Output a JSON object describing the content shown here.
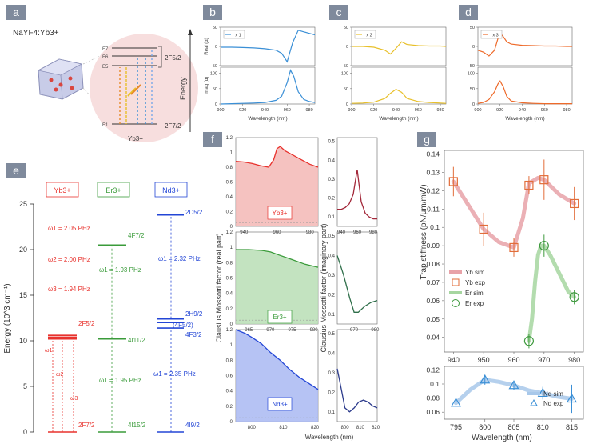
{
  "panels": {
    "a": "a",
    "b": "b",
    "c": "c",
    "d": "d",
    "e": "e",
    "f": "f",
    "g": "g"
  },
  "colors": {
    "panel_bg": "#7f8a9c",
    "yb": "#e8322d",
    "er": "#3a9b3a",
    "nd": "#2346d6",
    "yb_fill": "#f3b7b5",
    "er_fill": "#b9deb5",
    "nd_fill": "#a9b8f2",
    "b_line": "#3a8fd6",
    "c_line": "#e8c02a",
    "d_line": "#ee6a2a",
    "g_yb": "#e8a2a8",
    "g_yb_exp": "#e26d3a",
    "g_er": "#a6d6a0",
    "g_er_exp": "#3f9a3f",
    "g_nd": "#a8c8ea",
    "g_nd_exp": "#3a8fd6"
  },
  "panel_a": {
    "formula": "NaYF4:Yb3+",
    "levels_top": [
      "E7",
      "E6",
      "E5"
    ],
    "level_bottom": "E1",
    "label_top": "2F5/2",
    "label_bottom": "2F7/2",
    "ion": "Yb3+",
    "axis": "Energy"
  },
  "chart_data": [
    {
      "id": "b",
      "type": "line",
      "legend": "x 1",
      "top": {
        "ylabel": "Real (α)",
        "ylim": [
          -50,
          50
        ],
        "yticks": [
          "50",
          "0",
          "-50"
        ],
        "x": [
          900,
          910,
          920,
          930,
          940,
          950,
          955,
          960,
          965,
          970,
          975,
          980,
          985
        ],
        "y": [
          -2,
          -2,
          -3,
          -4,
          -6,
          -10,
          -18,
          -40,
          10,
          42,
          38,
          34,
          30
        ]
      },
      "bottom": {
        "ylabel": "Imag (α)",
        "ylim": [
          0,
          120
        ],
        "yticks": [
          "100",
          "50",
          "0"
        ],
        "x": [
          900,
          910,
          920,
          930,
          940,
          950,
          955,
          960,
          963,
          966,
          970,
          975,
          980,
          985
        ],
        "y": [
          0,
          1,
          2,
          3,
          5,
          12,
          25,
          70,
          110,
          90,
          40,
          15,
          8,
          5
        ]
      },
      "xticks": [
        "900",
        "920",
        "940",
        "960",
        "980"
      ],
      "xlabel": "Wavelength (nm)"
    },
    {
      "id": "c",
      "type": "line",
      "legend": "x 2",
      "top": {
        "ylim": [
          -50,
          50
        ],
        "yticks": [
          "50",
          "0",
          "-50"
        ],
        "x": [
          900,
          910,
          920,
          930,
          935,
          940,
          945,
          950,
          960,
          970,
          980,
          985
        ],
        "y": [
          0,
          0,
          -2,
          -10,
          -20,
          -5,
          12,
          5,
          2,
          1,
          1,
          0
        ]
      },
      "bottom": {
        "ylim": [
          0,
          120
        ],
        "yticks": [
          "100",
          "50",
          "0"
        ],
        "x": [
          900,
          910,
          920,
          930,
          935,
          940,
          945,
          950,
          960,
          970,
          980,
          985
        ],
        "y": [
          2,
          3,
          6,
          18,
          35,
          48,
          38,
          18,
          8,
          5,
          3,
          2
        ]
      },
      "xticks": [
        "900",
        "920",
        "940",
        "960",
        "980"
      ],
      "xlabel": "Wavelength (nm)"
    },
    {
      "id": "d",
      "type": "line",
      "legend": "x 3",
      "top": {
        "ylim": [
          -50,
          50
        ],
        "yticks": [
          "50",
          "0",
          "-50"
        ],
        "x": [
          900,
          905,
          910,
          915,
          918,
          920,
          923,
          926,
          930,
          940,
          950,
          960,
          970,
          980,
          985
        ],
        "y": [
          -10,
          -15,
          -25,
          -10,
          20,
          35,
          25,
          12,
          6,
          3,
          2,
          1,
          1,
          0,
          0
        ]
      },
      "bottom": {
        "ylim": [
          0,
          120
        ],
        "yticks": [
          "100",
          "50",
          "0"
        ],
        "x": [
          900,
          905,
          910,
          915,
          918,
          920,
          923,
          926,
          930,
          940,
          950,
          960,
          970,
          980,
          985
        ],
        "y": [
          2,
          5,
          15,
          40,
          65,
          75,
          55,
          25,
          10,
          4,
          2,
          1,
          1,
          1,
          1
        ]
      },
      "xticks": [
        "900",
        "920",
        "940",
        "960",
        "980"
      ],
      "xlabel": "Wavelength (nm)"
    },
    {
      "id": "e",
      "type": "diagram",
      "ylabel": "Energy (10^3 cm⁻¹)",
      "ylim": [
        0,
        25
      ],
      "yticks": [
        "0",
        "5",
        "10",
        "15",
        "20",
        "25"
      ],
      "ions": [
        "Yb3+",
        "Er3+",
        "Nd3+"
      ],
      "yb": {
        "freqs": [
          "ω1 = 2.05 PHz",
          "ω2 = 2.00 PHz",
          "ω3 = 1.94 PHz"
        ],
        "upper": "2F5/2",
        "lower": "2F7/2",
        "arrow_labels": [
          "ω1",
          "ω2",
          "ω3"
        ]
      },
      "er": {
        "upper_top": "4F7/2",
        "mid": "4I11/2",
        "lower": "4I15/2",
        "freq1": "ω1 = 1.93 PHz",
        "freq2": "ω1 = 1.95 PHz"
      },
      "nd": {
        "top": "2D5/2",
        "mid_a": "2H9/2",
        "mid_b": "(4F5/2)",
        "mid_c": "4F3/2",
        "lower": "4I9/2",
        "freq1": "ω1 = 2.32 PHz",
        "freq2": "ω1 = 2.35 PHz"
      }
    },
    {
      "id": "f",
      "type": "area",
      "ylabel_left": "Clausius Mossotti factor (real part)",
      "ylabel_right": "Clausius Mossotti factor (imaginary part)",
      "xlabel": "Wavelength (nm)",
      "rows": [
        {
          "ion": "Yb3+",
          "left_yticks": [
            "1.2",
            "1",
            "0.8",
            "0.6",
            "0.4",
            "0.2",
            "0"
          ],
          "left_xticks": [
            "940",
            "960",
            "980"
          ],
          "left_x": [
            935,
            940,
            945,
            950,
            955,
            958,
            960,
            962,
            965,
            970,
            975,
            980,
            985
          ],
          "left_y": [
            0.88,
            0.87,
            0.85,
            0.82,
            0.8,
            0.9,
            1.05,
            1.08,
            1.02,
            0.96,
            0.9,
            0.84,
            0.8
          ],
          "right_yticks": [
            "0.5",
            "0.4",
            "0.3",
            "0.2",
            "0.1"
          ],
          "right_xticks": [
            "940",
            "960",
            "980"
          ],
          "right_x": [
            935,
            940,
            945,
            950,
            955,
            958,
            960,
            962,
            965,
            970,
            975,
            980,
            985
          ],
          "right_y": [
            0.14,
            0.14,
            0.15,
            0.17,
            0.22,
            0.3,
            0.35,
            0.28,
            0.18,
            0.12,
            0.1,
            0.09,
            0.09
          ]
        },
        {
          "ion": "Er3+",
          "left_yticks": [
            "1.2",
            "1",
            "0.8",
            "0.6",
            "0.4",
            "0.2",
            "0"
          ],
          "left_xticks": [
            "965",
            "970",
            "975",
            "980"
          ],
          "left_x": [
            962,
            965,
            968,
            970,
            972,
            975,
            978,
            981
          ],
          "left_y": [
            0.97,
            0.97,
            0.96,
            0.94,
            0.9,
            0.84,
            0.78,
            0.74
          ],
          "right_yticks": [
            "0.5",
            "0.4",
            "0.3",
            "0.2",
            "0.1"
          ],
          "right_xticks": [
            "970",
            "980"
          ],
          "right_x": [
            962,
            965,
            968,
            970,
            972,
            975,
            978,
            981
          ],
          "right_y": [
            0.4,
            0.3,
            0.18,
            0.11,
            0.11,
            0.14,
            0.16,
            0.17
          ]
        },
        {
          "ion": "Nd3+",
          "left_yticks": [
            "1.2",
            "1",
            "0.8",
            "0.6",
            "0.4",
            "0.2",
            "0"
          ],
          "left_xticks": [
            "800",
            "810",
            "820"
          ],
          "left_x": [
            795,
            798,
            800,
            803,
            806,
            809,
            812,
            815,
            818,
            821
          ],
          "left_y": [
            1.2,
            1.15,
            1.1,
            1.02,
            0.9,
            0.8,
            0.68,
            0.58,
            0.5,
            0.42
          ],
          "right_yticks": [
            "0.5",
            "0.4",
            "0.3",
            "0.2",
            "0.1"
          ],
          "right_xticks": [
            "800",
            "810",
            "820"
          ],
          "right_x": [
            795,
            798,
            800,
            803,
            806,
            809,
            812,
            815,
            818,
            821
          ],
          "right_y": [
            0.32,
            0.2,
            0.12,
            0.1,
            0.12,
            0.15,
            0.16,
            0.15,
            0.13,
            0.12
          ]
        }
      ]
    },
    {
      "id": "g",
      "type": "line",
      "ylabel": "Trap stiffness (pN/μm/mW)",
      "xlabel": "Wavelength (nm)",
      "top": {
        "ylim": [
          0.03,
          0.14
        ],
        "yticks": [
          "0.14",
          "0.13",
          "0.12",
          "0.11",
          "0.1",
          "0.09",
          "0.08",
          "0.07",
          "0.06",
          "0.05",
          "0.04"
        ],
        "xticks": [
          "940",
          "950",
          "960",
          "970",
          "980"
        ],
        "yb_sim_x": [
          940,
          945,
          950,
          955,
          960,
          963,
          965,
          968,
          970,
          975,
          980
        ],
        "yb_sim_y": [
          0.125,
          0.112,
          0.099,
          0.092,
          0.089,
          0.105,
          0.124,
          0.127,
          0.126,
          0.118,
          0.113
        ],
        "yb_exp": [
          [
            940,
            0.125,
            0.008
          ],
          [
            950,
            0.099,
            0.009
          ],
          [
            960,
            0.089,
            0.005
          ],
          [
            965,
            0.123,
            0.005
          ],
          [
            970,
            0.126,
            0.011
          ],
          [
            980,
            0.113,
            0.009
          ]
        ],
        "er_sim_x": [
          965,
          966,
          967,
          968,
          969,
          970,
          972,
          975,
          978,
          980
        ],
        "er_sim_y": [
          0.038,
          0.05,
          0.07,
          0.085,
          0.09,
          0.09,
          0.085,
          0.075,
          0.065,
          0.062
        ],
        "er_exp": [
          [
            965,
            0.038,
            0.004
          ],
          [
            970,
            0.09,
            0.006
          ],
          [
            980,
            0.062,
            0.004
          ]
        ],
        "legend": [
          "Yb sim",
          "Yb exp",
          "Er sim",
          "Er exp"
        ]
      },
      "bottom": {
        "ylim": [
          0.05,
          0.12
        ],
        "yticks": [
          "0.12",
          "0.1",
          "0.08",
          "0.06"
        ],
        "xticks": [
          "795",
          "800",
          "805",
          "810",
          "815"
        ],
        "nd_sim_x": [
          795,
          797.5,
          800,
          802.5,
          805,
          807.5,
          810,
          812.5,
          815
        ],
        "nd_sim_y": [
          0.073,
          0.092,
          0.106,
          0.103,
          0.098,
          0.091,
          0.087,
          0.082,
          0.079
        ],
        "nd_exp": [
          [
            795,
            0.073,
            0.005
          ],
          [
            800,
            0.106,
            0.007
          ],
          [
            805,
            0.098,
            0.006
          ],
          [
            810,
            0.087,
            0.009
          ],
          [
            815,
            0.079,
            0.02
          ]
        ],
        "legend": [
          "Nd sim",
          "Nd exp"
        ]
      }
    }
  ]
}
